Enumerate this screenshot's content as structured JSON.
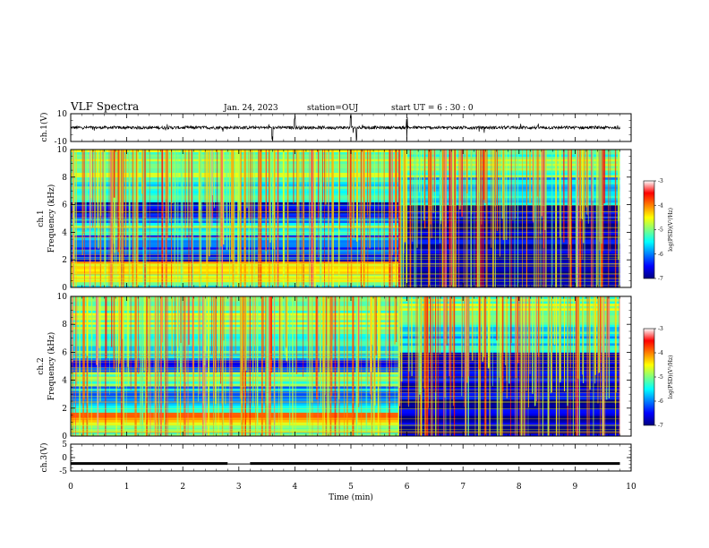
{
  "header": {
    "title": "VLF Spectra",
    "date": "Jan. 24, 2023",
    "station": "station=OUJ",
    "start": "start UT =  6 : 30 : 0"
  },
  "chart_data": [
    {
      "type": "line",
      "name": "ch1-waveform",
      "ylabel": "ch.1(V)",
      "ylim": [
        -10,
        10
      ],
      "yticks": [
        "10",
        "-10"
      ],
      "baseline": 0,
      "note_spikes_min": [
        3.6,
        4.0,
        5.0,
        5.1,
        6.0
      ]
    },
    {
      "type": "heatmap",
      "name": "ch1-spectrogram",
      "ylabel": "ch.1",
      "ylabel2": "Frequency (kHz)",
      "ylim": [
        0,
        10
      ],
      "yticks": [
        "0",
        "2",
        "4",
        "6",
        "8",
        "10"
      ],
      "transition_min": 5.85,
      "bands_before": [
        {
          "f0": 0.0,
          "f1": 0.4,
          "level": -5.2
        },
        {
          "f0": 0.4,
          "f1": 1.0,
          "level": -4.6
        },
        {
          "f0": 1.0,
          "f1": 1.9,
          "level": -4.3
        },
        {
          "f0": 1.9,
          "f1": 2.4,
          "level": -6.4
        },
        {
          "f0": 2.4,
          "f1": 3.8,
          "level": -6.0
        },
        {
          "f0": 3.8,
          "f1": 4.7,
          "level": -5.3
        },
        {
          "f0": 4.7,
          "f1": 5.4,
          "level": -6.2
        },
        {
          "f0": 5.4,
          "f1": 6.2,
          "level": -6.6
        },
        {
          "f0": 6.2,
          "f1": 8.0,
          "level": -5.5
        },
        {
          "f0": 8.0,
          "f1": 10.0,
          "level": -5.0
        }
      ],
      "bands_after": [
        {
          "f0": 0.0,
          "f1": 2.0,
          "level": -6.9
        },
        {
          "f0": 2.0,
          "f1": 4.5,
          "level": -6.7
        },
        {
          "f0": 4.5,
          "f1": 6.0,
          "level": -6.8
        },
        {
          "f0": 6.0,
          "f1": 8.0,
          "level": -5.6
        },
        {
          "f0": 8.0,
          "f1": 10.0,
          "level": -5.1
        }
      ],
      "colorbar": {
        "label": "log(PSD)(V²/Hz)",
        "ticks": [
          "-3",
          "-4",
          "-5",
          "-6",
          "-7"
        ],
        "range": [
          -7,
          -3
        ]
      }
    },
    {
      "type": "heatmap",
      "name": "ch2-spectrogram",
      "ylabel": "ch.2",
      "ylabel2": "Frequency (kHz)",
      "ylim": [
        0,
        10
      ],
      "yticks": [
        "0",
        "2",
        "4",
        "6",
        "8",
        "10"
      ],
      "transition_min": 5.85,
      "bands_before": [
        {
          "f0": 0.0,
          "f1": 0.6,
          "level": -5.1
        },
        {
          "f0": 0.6,
          "f1": 1.0,
          "level": -4.8
        },
        {
          "f0": 1.0,
          "f1": 1.7,
          "level": -4.2
        },
        {
          "f0": 1.7,
          "f1": 2.2,
          "level": -5.0
        },
        {
          "f0": 2.2,
          "f1": 3.6,
          "level": -5.8
        },
        {
          "f0": 3.6,
          "f1": 4.6,
          "level": -5.2
        },
        {
          "f0": 4.6,
          "f1": 5.6,
          "level": -6.4
        },
        {
          "f0": 5.6,
          "f1": 7.5,
          "level": -5.4
        },
        {
          "f0": 7.5,
          "f1": 10.0,
          "level": -5.0
        }
      ],
      "bands_after": [
        {
          "f0": 0.0,
          "f1": 1.8,
          "level": -6.9
        },
        {
          "f0": 1.8,
          "f1": 4.5,
          "level": -6.7
        },
        {
          "f0": 4.5,
          "f1": 6.0,
          "level": -6.6
        },
        {
          "f0": 6.0,
          "f1": 8.0,
          "level": -5.6
        },
        {
          "f0": 8.0,
          "f1": 10.0,
          "level": -5.0
        }
      ],
      "colorbar": {
        "label": "log(PSD)(V²/Hz)",
        "ticks": [
          "-3",
          "-4",
          "-5",
          "-6",
          "-7"
        ],
        "range": [
          -7,
          -3
        ]
      }
    },
    {
      "type": "line",
      "name": "ch3-waveform",
      "ylabel": "ch.3(V)",
      "ylim": [
        -5,
        5
      ],
      "yticks": [
        "5",
        "0",
        "-5"
      ],
      "level": -2.2,
      "gap_min": [
        2.8,
        3.2
      ]
    }
  ],
  "xaxis": {
    "label": "Time (min)",
    "ticks": [
      "0",
      "1",
      "2",
      "3",
      "4",
      "5",
      "6",
      "7",
      "8",
      "9",
      "10"
    ],
    "xlim": [
      0,
      10
    ],
    "data_end_min": 9.8
  }
}
